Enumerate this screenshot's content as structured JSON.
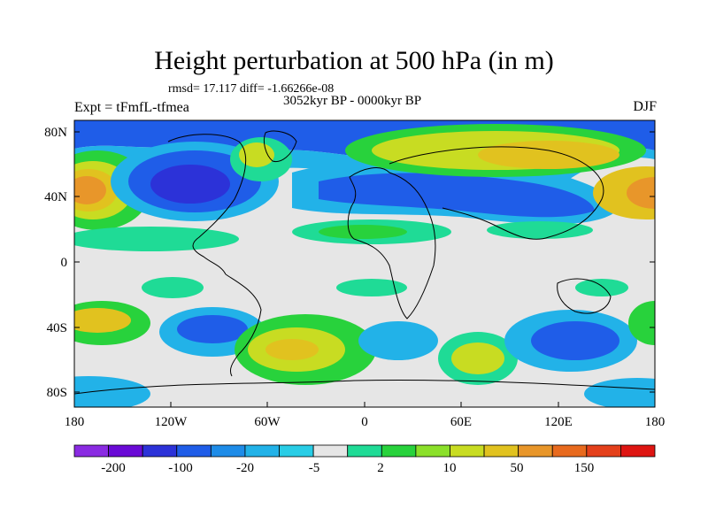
{
  "title": "Height perturbation at 500 hPa (in m)",
  "stats": "rmsd= 17.117 diff= -1.66266e-08",
  "subtitle": "3052kyr BP - 0000kyr BP",
  "experiment": "Expt = tFmfL-tfmea",
  "season": "DJF",
  "lat_labels": [
    "80N",
    "40N",
    "0",
    "40S",
    "80S"
  ],
  "lon_labels": [
    "180",
    "120W",
    "60W",
    "0",
    "60E",
    "120E",
    "180"
  ],
  "colorbar": {
    "labels": [
      "-200",
      "-100",
      "-20",
      "-5",
      "2",
      "10",
      "50",
      "150"
    ],
    "colors": [
      "#8a2be2",
      "#6a0ad6",
      "#2c32d8",
      "#1f5de8",
      "#1e8ce8",
      "#22b2e8",
      "#29cde6",
      "#e6e6e6",
      "#1fdb96",
      "#28d23c",
      "#8be02a",
      "#c8dc22",
      "#e1c21f",
      "#e8962a",
      "#e86a1e",
      "#e4401b",
      "#de1512"
    ]
  }
}
